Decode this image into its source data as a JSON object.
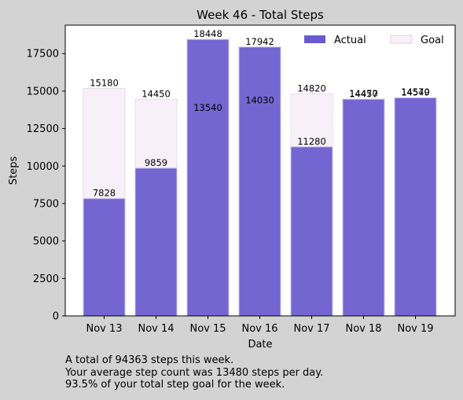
{
  "chart_data": {
    "type": "bar",
    "title": "Week 46 - Total Steps",
    "xlabel": "Date",
    "ylabel": "Steps",
    "categories": [
      "Nov 13",
      "Nov 14",
      "Nov 15",
      "Nov 16",
      "Nov 17",
      "Nov 18",
      "Nov 19"
    ],
    "series": [
      {
        "name": "Actual",
        "values": [
          7828,
          9859,
          18448,
          17942,
          11280,
          14457,
          14549
        ],
        "color": "#6a5acd"
      },
      {
        "name": "Goal",
        "values": [
          15180,
          14450,
          13540,
          14030,
          14820,
          14470,
          14570
        ],
        "color": "#f8f0f8"
      }
    ],
    "ylim": [
      0,
      19400
    ],
    "yticks": [
      0,
      2500,
      5000,
      7500,
      10000,
      12500,
      15000,
      17500
    ],
    "grid": false,
    "legend_position": "top-right"
  },
  "summary": {
    "line1": "A total of 94363 steps this week.",
    "line2": "Your average step count was 13480 steps per day.",
    "line3": "93.5% of your total step goal for the week."
  }
}
